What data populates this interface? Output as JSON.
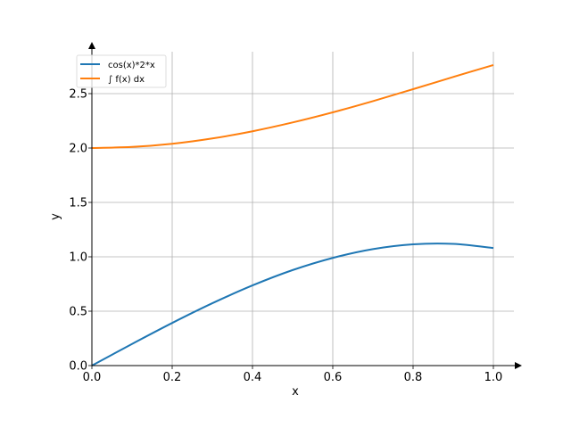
{
  "chart_data": {
    "type": "line",
    "xlabel": "x",
    "ylabel": "y",
    "xlim": [
      0.0,
      1.05
    ],
    "ylim": [
      0.0,
      2.9
    ],
    "grid": true,
    "legend_position": "top-left",
    "xticks": [
      0.0,
      0.2,
      0.4,
      0.6,
      0.8,
      1.0
    ],
    "xtick_labels": [
      "0.0",
      "0.2",
      "0.4",
      "0.6",
      "0.8",
      "1.0"
    ],
    "yticks": [
      0.0,
      0.5,
      1.0,
      1.5,
      2.0,
      2.5
    ],
    "ytick_labels": [
      "0.0",
      "0.5",
      "1.0",
      "1.5",
      "2.0",
      "2.5"
    ],
    "x": [
      0.0,
      0.1,
      0.2,
      0.3,
      0.4,
      0.5,
      0.6,
      0.7,
      0.8,
      0.9,
      1.0
    ],
    "series": [
      {
        "name": "cos(x)*2*x",
        "color": "#1f77b4",
        "values": [
          0.0,
          0.199,
          0.392,
          0.573,
          0.737,
          0.878,
          0.99,
          1.071,
          1.115,
          1.119,
          1.081
        ]
      },
      {
        "name": "∫ f(x) dx",
        "color": "#ff7f0e",
        "values": [
          2.0,
          2.01,
          2.039,
          2.088,
          2.154,
          2.235,
          2.328,
          2.431,
          2.541,
          2.653,
          2.763
        ]
      }
    ]
  }
}
